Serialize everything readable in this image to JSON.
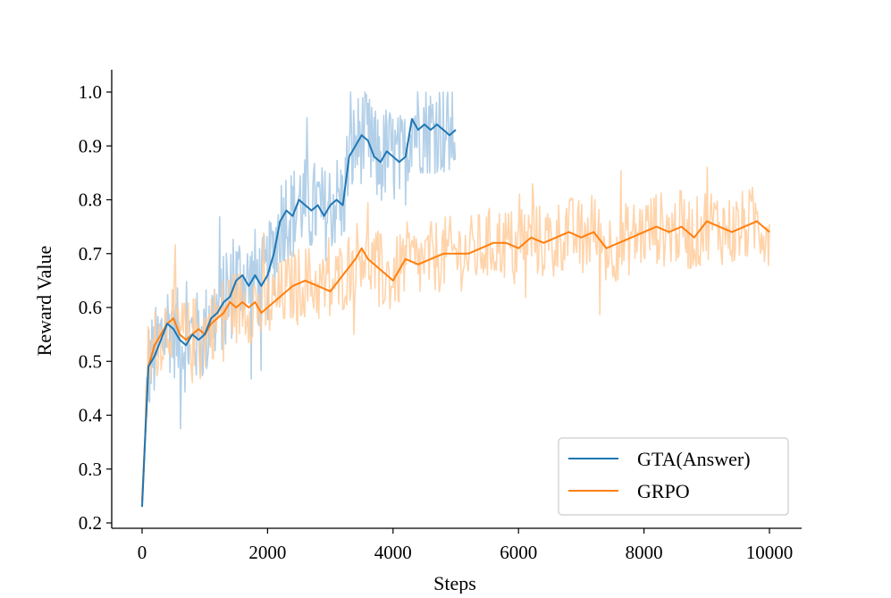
{
  "chart_data": {
    "type": "line",
    "title": "",
    "xlabel": "Steps",
    "ylabel": "Reward Value",
    "xlim": [
      -500,
      10500
    ],
    "ylim": [
      0.2,
      1.05
    ],
    "xticks": [
      0,
      2000,
      4000,
      6000,
      8000,
      10000
    ],
    "xtick_labels": [
      "0",
      "2000",
      "4000",
      "6000",
      "8000",
      "10000"
    ],
    "yticks": [
      0.2,
      0.3,
      0.4,
      0.5,
      0.6,
      0.7,
      0.8,
      0.9,
      1.0
    ],
    "ytick_labels": [
      "0.2",
      "0.3",
      "0.4",
      "0.5",
      "0.6",
      "0.7",
      "0.8",
      "0.9",
      "1.0"
    ],
    "grid": false,
    "legend_position": "bottom-right",
    "series": [
      {
        "name": "GTA(Answer)",
        "color": "#1f77b4",
        "raw_color": "#a6c8e4",
        "x": [
          0,
          100,
          200,
          300,
          400,
          500,
          600,
          700,
          800,
          900,
          1000,
          1100,
          1200,
          1300,
          1400,
          1500,
          1600,
          1700,
          1800,
          1900,
          2000,
          2100,
          2200,
          2300,
          2400,
          2500,
          2600,
          2700,
          2800,
          2900,
          3000,
          3100,
          3200,
          3300,
          3400,
          3500,
          3600,
          3700,
          3800,
          3900,
          4000,
          4100,
          4200,
          4300,
          4400,
          4500,
          4600,
          4700,
          4800,
          4900,
          5000
        ],
        "values": [
          0.23,
          0.49,
          0.51,
          0.54,
          0.57,
          0.56,
          0.54,
          0.53,
          0.55,
          0.54,
          0.55,
          0.58,
          0.59,
          0.61,
          0.62,
          0.65,
          0.66,
          0.64,
          0.66,
          0.64,
          0.66,
          0.7,
          0.76,
          0.78,
          0.77,
          0.8,
          0.79,
          0.78,
          0.79,
          0.77,
          0.79,
          0.8,
          0.79,
          0.88,
          0.9,
          0.92,
          0.91,
          0.88,
          0.87,
          0.89,
          0.88,
          0.87,
          0.88,
          0.95,
          0.93,
          0.94,
          0.93,
          0.94,
          0.93,
          0.92,
          0.93
        ]
      },
      {
        "name": "GRPO",
        "color": "#ff7f0e",
        "raw_color": "#ffcc9c",
        "x": [
          0,
          100,
          200,
          300,
          400,
          500,
          600,
          700,
          800,
          900,
          1000,
          1100,
          1200,
          1300,
          1400,
          1500,
          1600,
          1700,
          1800,
          1900,
          2000,
          2200,
          2400,
          2600,
          2800,
          3000,
          3200,
          3400,
          3500,
          3600,
          3800,
          4000,
          4200,
          4400,
          4600,
          4800,
          5000,
          5200,
          5400,
          5600,
          5800,
          6000,
          6200,
          6400,
          6600,
          6800,
          7000,
          7200,
          7400,
          7600,
          7800,
          8000,
          8200,
          8400,
          8600,
          8800,
          9000,
          9200,
          9400,
          9600,
          9800,
          10000
        ],
        "values": [
          0.24,
          0.49,
          0.53,
          0.55,
          0.57,
          0.58,
          0.55,
          0.54,
          0.55,
          0.56,
          0.55,
          0.57,
          0.58,
          0.59,
          0.61,
          0.6,
          0.61,
          0.6,
          0.61,
          0.59,
          0.6,
          0.62,
          0.64,
          0.65,
          0.64,
          0.63,
          0.66,
          0.69,
          0.71,
          0.69,
          0.67,
          0.65,
          0.69,
          0.68,
          0.69,
          0.7,
          0.7,
          0.7,
          0.71,
          0.72,
          0.72,
          0.71,
          0.73,
          0.72,
          0.73,
          0.74,
          0.73,
          0.74,
          0.71,
          0.72,
          0.73,
          0.74,
          0.75,
          0.74,
          0.75,
          0.73,
          0.76,
          0.75,
          0.74,
          0.75,
          0.76,
          0.74
        ]
      }
    ]
  }
}
